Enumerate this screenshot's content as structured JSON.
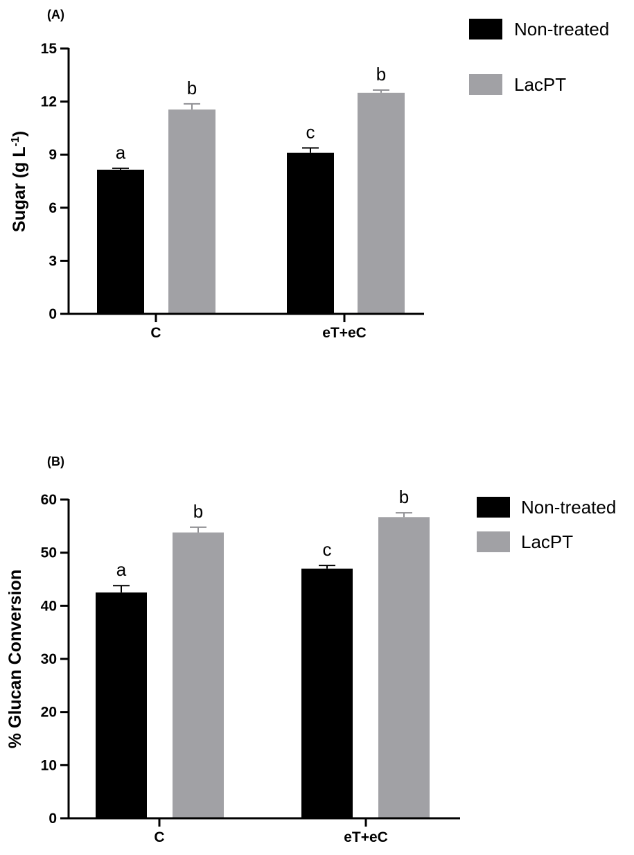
{
  "chart_data": [
    {
      "type": "bar",
      "panel_label": "(A)",
      "title": "",
      "xlabel": "",
      "ylabel": "Sugar (g L",
      "ylabel_sup": "-1",
      "ylabel_close": ")",
      "ylim": [
        0,
        15
      ],
      "yticks": [
        0,
        3,
        6,
        9,
        12,
        15
      ],
      "categories": [
        "C",
        "eT+eC"
      ],
      "legend_position": "top-right",
      "series": [
        {
          "name": "Non-treated",
          "color": "#000000",
          "values": [
            8.15,
            9.1
          ],
          "errors": [
            0.08,
            0.28
          ],
          "letters": [
            "a",
            "c"
          ]
        },
        {
          "name": "LacPT",
          "color": "#a1a1a5",
          "values": [
            11.55,
            12.5
          ],
          "errors": [
            0.32,
            0.15
          ],
          "letters": [
            "b",
            "b"
          ]
        }
      ]
    },
    {
      "type": "bar",
      "panel_label": "(B)",
      "title": "",
      "xlabel": "",
      "ylabel": "% Glucan Conversion",
      "ylim": [
        0,
        60
      ],
      "yticks": [
        0,
        10,
        20,
        30,
        40,
        50,
        60
      ],
      "categories": [
        "C",
        "eT+eC"
      ],
      "legend_position": "top-right",
      "series": [
        {
          "name": "Non-treated",
          "color": "#000000",
          "values": [
            42.5,
            47.0
          ],
          "errors": [
            1.3,
            0.6
          ],
          "letters": [
            "a",
            "c"
          ]
        },
        {
          "name": "LacPT",
          "color": "#a1a1a5",
          "values": [
            53.8,
            56.7
          ],
          "errors": [
            1.0,
            0.8
          ],
          "letters": [
            "b",
            "b"
          ]
        }
      ]
    }
  ]
}
